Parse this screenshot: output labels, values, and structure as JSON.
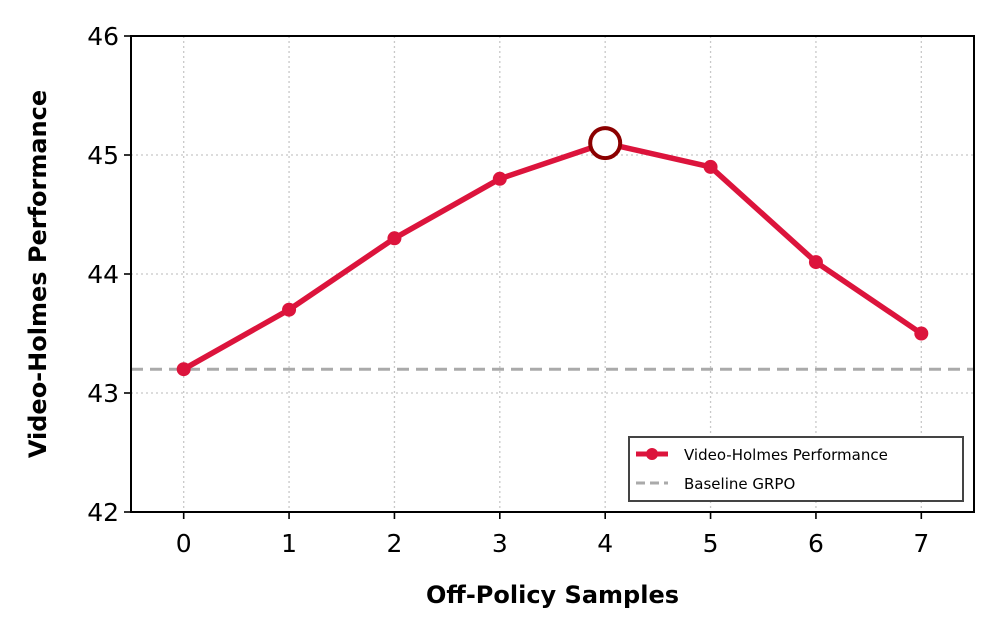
{
  "chart_data": {
    "type": "line",
    "title": "",
    "xlabel": "Off-Policy Samples",
    "ylabel": "Video-Holmes Performance",
    "x": [
      0,
      1,
      2,
      3,
      4,
      5,
      6,
      7
    ],
    "xlim": [
      -0.5,
      7.5
    ],
    "ylim": [
      42,
      46
    ],
    "xticks": [
      "0",
      "1",
      "2",
      "3",
      "4",
      "5",
      "6",
      "7"
    ],
    "yticks": [
      "42",
      "43",
      "44",
      "45",
      "46"
    ],
    "grid": true,
    "series": [
      {
        "name": "Video-Holmes Performance",
        "values": [
          43.2,
          43.7,
          44.3,
          44.8,
          45.1,
          44.9,
          44.1,
          43.5
        ],
        "color": "#dc143c",
        "highlight_index": 4,
        "highlight_color": "#8b0000"
      }
    ],
    "reference_lines": [
      {
        "name": "Baseline GRPO",
        "y": 43.2,
        "style": "dashed",
        "color": "#aaaaaa"
      }
    ],
    "legend_position": "lower-right"
  }
}
